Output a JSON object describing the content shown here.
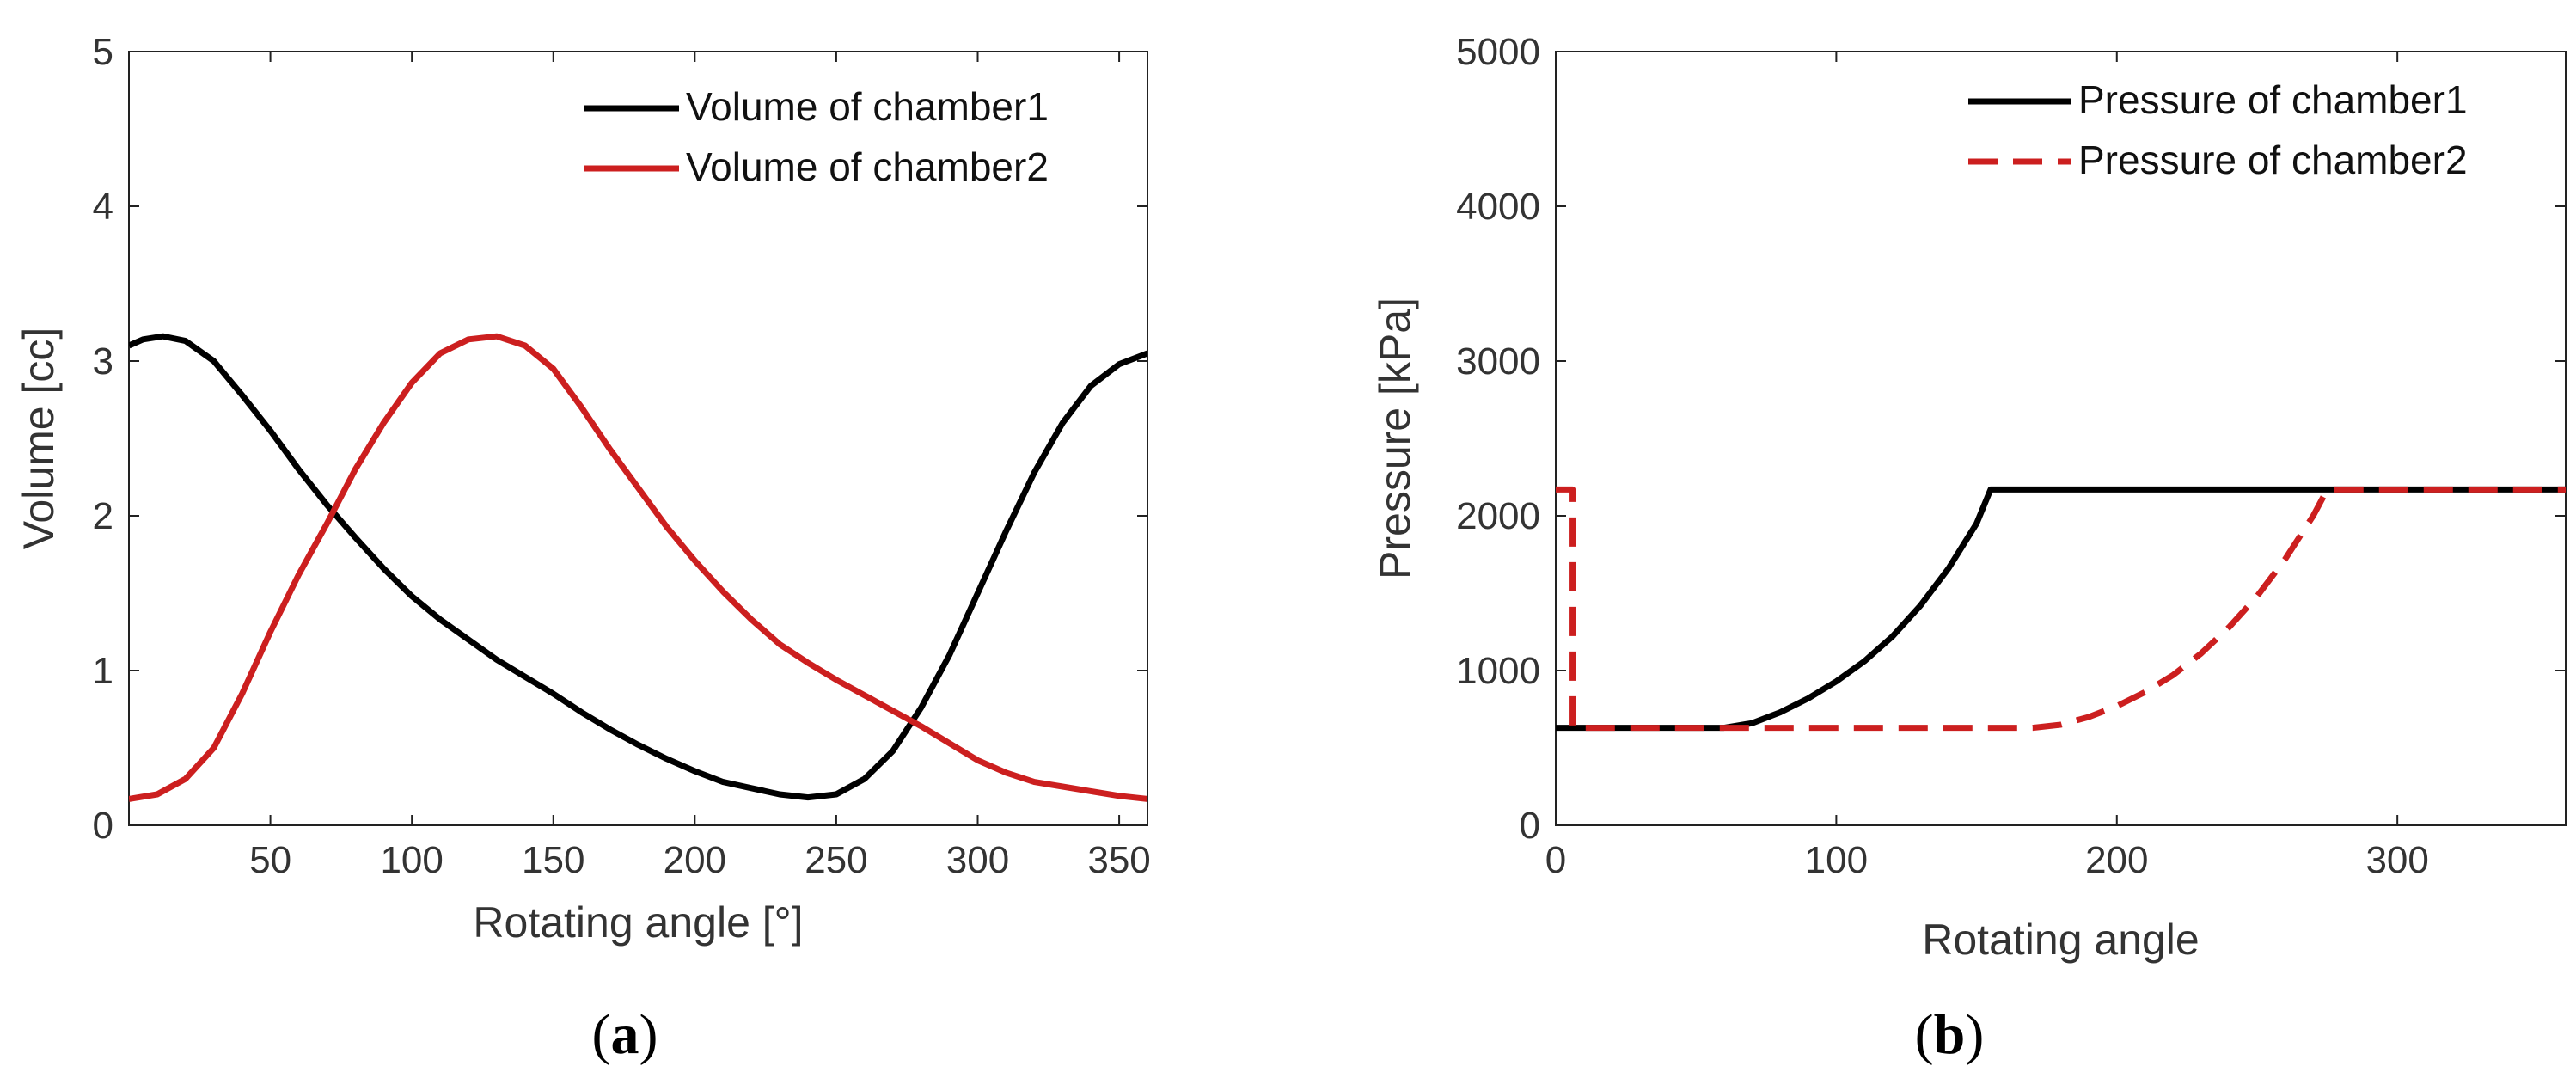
{
  "chart_data": [
    {
      "panel": "a",
      "type": "line",
      "title": "",
      "xlabel": "Rotating angle [°]",
      "ylabel": "Volume [cc]",
      "xlim": [
        0,
        360
      ],
      "ylim": [
        0,
        5
      ],
      "xticks": [
        50,
        100,
        150,
        200,
        250,
        300,
        350
      ],
      "yticks": [
        0,
        1,
        2,
        3,
        4,
        5
      ],
      "grid": false,
      "legend_position": "top-right",
      "series": [
        {
          "name": "Volume of chamber1",
          "color": "#000000",
          "dash": "solid",
          "x": [
            0,
            5,
            12,
            20,
            30,
            40,
            50,
            60,
            70,
            80,
            90,
            100,
            110,
            120,
            130,
            140,
            150,
            160,
            170,
            180,
            190,
            200,
            210,
            220,
            230,
            240,
            250,
            260,
            270,
            280,
            290,
            300,
            310,
            320,
            330,
            340,
            350,
            360
          ],
          "y": [
            3.1,
            3.14,
            3.16,
            3.13,
            3.0,
            2.78,
            2.55,
            2.3,
            2.07,
            1.86,
            1.66,
            1.48,
            1.33,
            1.2,
            1.07,
            0.96,
            0.85,
            0.73,
            0.62,
            0.52,
            0.43,
            0.35,
            0.28,
            0.24,
            0.2,
            0.18,
            0.2,
            0.3,
            0.48,
            0.76,
            1.1,
            1.5,
            1.9,
            2.28,
            2.6,
            2.84,
            2.98,
            3.05
          ]
        },
        {
          "name": "Volume of chamber2",
          "color": "#cc1f1f",
          "dash": "solid",
          "x": [
            0,
            10,
            20,
            30,
            40,
            50,
            60,
            70,
            80,
            90,
            100,
            110,
            120,
            130,
            140,
            150,
            160,
            170,
            180,
            190,
            200,
            210,
            220,
            230,
            240,
            250,
            260,
            270,
            280,
            290,
            300,
            310,
            320,
            330,
            340,
            350,
            360
          ],
          "y": [
            0.17,
            0.2,
            0.3,
            0.5,
            0.85,
            1.25,
            1.62,
            1.95,
            2.3,
            2.6,
            2.86,
            3.05,
            3.14,
            3.16,
            3.1,
            2.95,
            2.7,
            2.43,
            2.18,
            1.93,
            1.71,
            1.51,
            1.33,
            1.17,
            1.05,
            0.94,
            0.84,
            0.74,
            0.64,
            0.53,
            0.42,
            0.34,
            0.28,
            0.25,
            0.22,
            0.19,
            0.17
          ]
        }
      ]
    },
    {
      "panel": "b",
      "type": "line",
      "title": "",
      "xlabel": "Rotating angle",
      "ylabel": "Pressure [kPa]",
      "xlim": [
        0,
        360
      ],
      "ylim": [
        0,
        5000
      ],
      "xticks": [
        0,
        100,
        200,
        300
      ],
      "yticks": [
        0,
        1000,
        2000,
        3000,
        4000,
        5000
      ],
      "grid": false,
      "legend_position": "top-right",
      "series": [
        {
          "name": "Pressure of chamber1",
          "color": "#000000",
          "dash": "solid",
          "x": [
            0,
            60,
            70,
            80,
            90,
            100,
            110,
            120,
            130,
            140,
            150,
            155,
            200,
            250,
            300,
            360
          ],
          "y": [
            630,
            630,
            660,
            730,
            820,
            930,
            1060,
            1220,
            1420,
            1660,
            1950,
            2170,
            2170,
            2170,
            2170,
            2170
          ]
        },
        {
          "name": "Pressure of chamber2",
          "color": "#cc1f1f",
          "dash": "dashed",
          "x": [
            0,
            6,
            6,
            60,
            100,
            150,
            170,
            180,
            190,
            200,
            210,
            220,
            230,
            240,
            250,
            260,
            270,
            275,
            300,
            360
          ],
          "y": [
            2170,
            2170,
            630,
            630,
            630,
            630,
            630,
            650,
            700,
            770,
            860,
            970,
            1110,
            1280,
            1480,
            1720,
            2000,
            2170,
            2170,
            2170
          ]
        }
      ]
    }
  ],
  "captions": [
    {
      "open": "(",
      "letter": "a",
      "close": ")"
    },
    {
      "open": "(",
      "letter": "b",
      "close": ")"
    }
  ]
}
